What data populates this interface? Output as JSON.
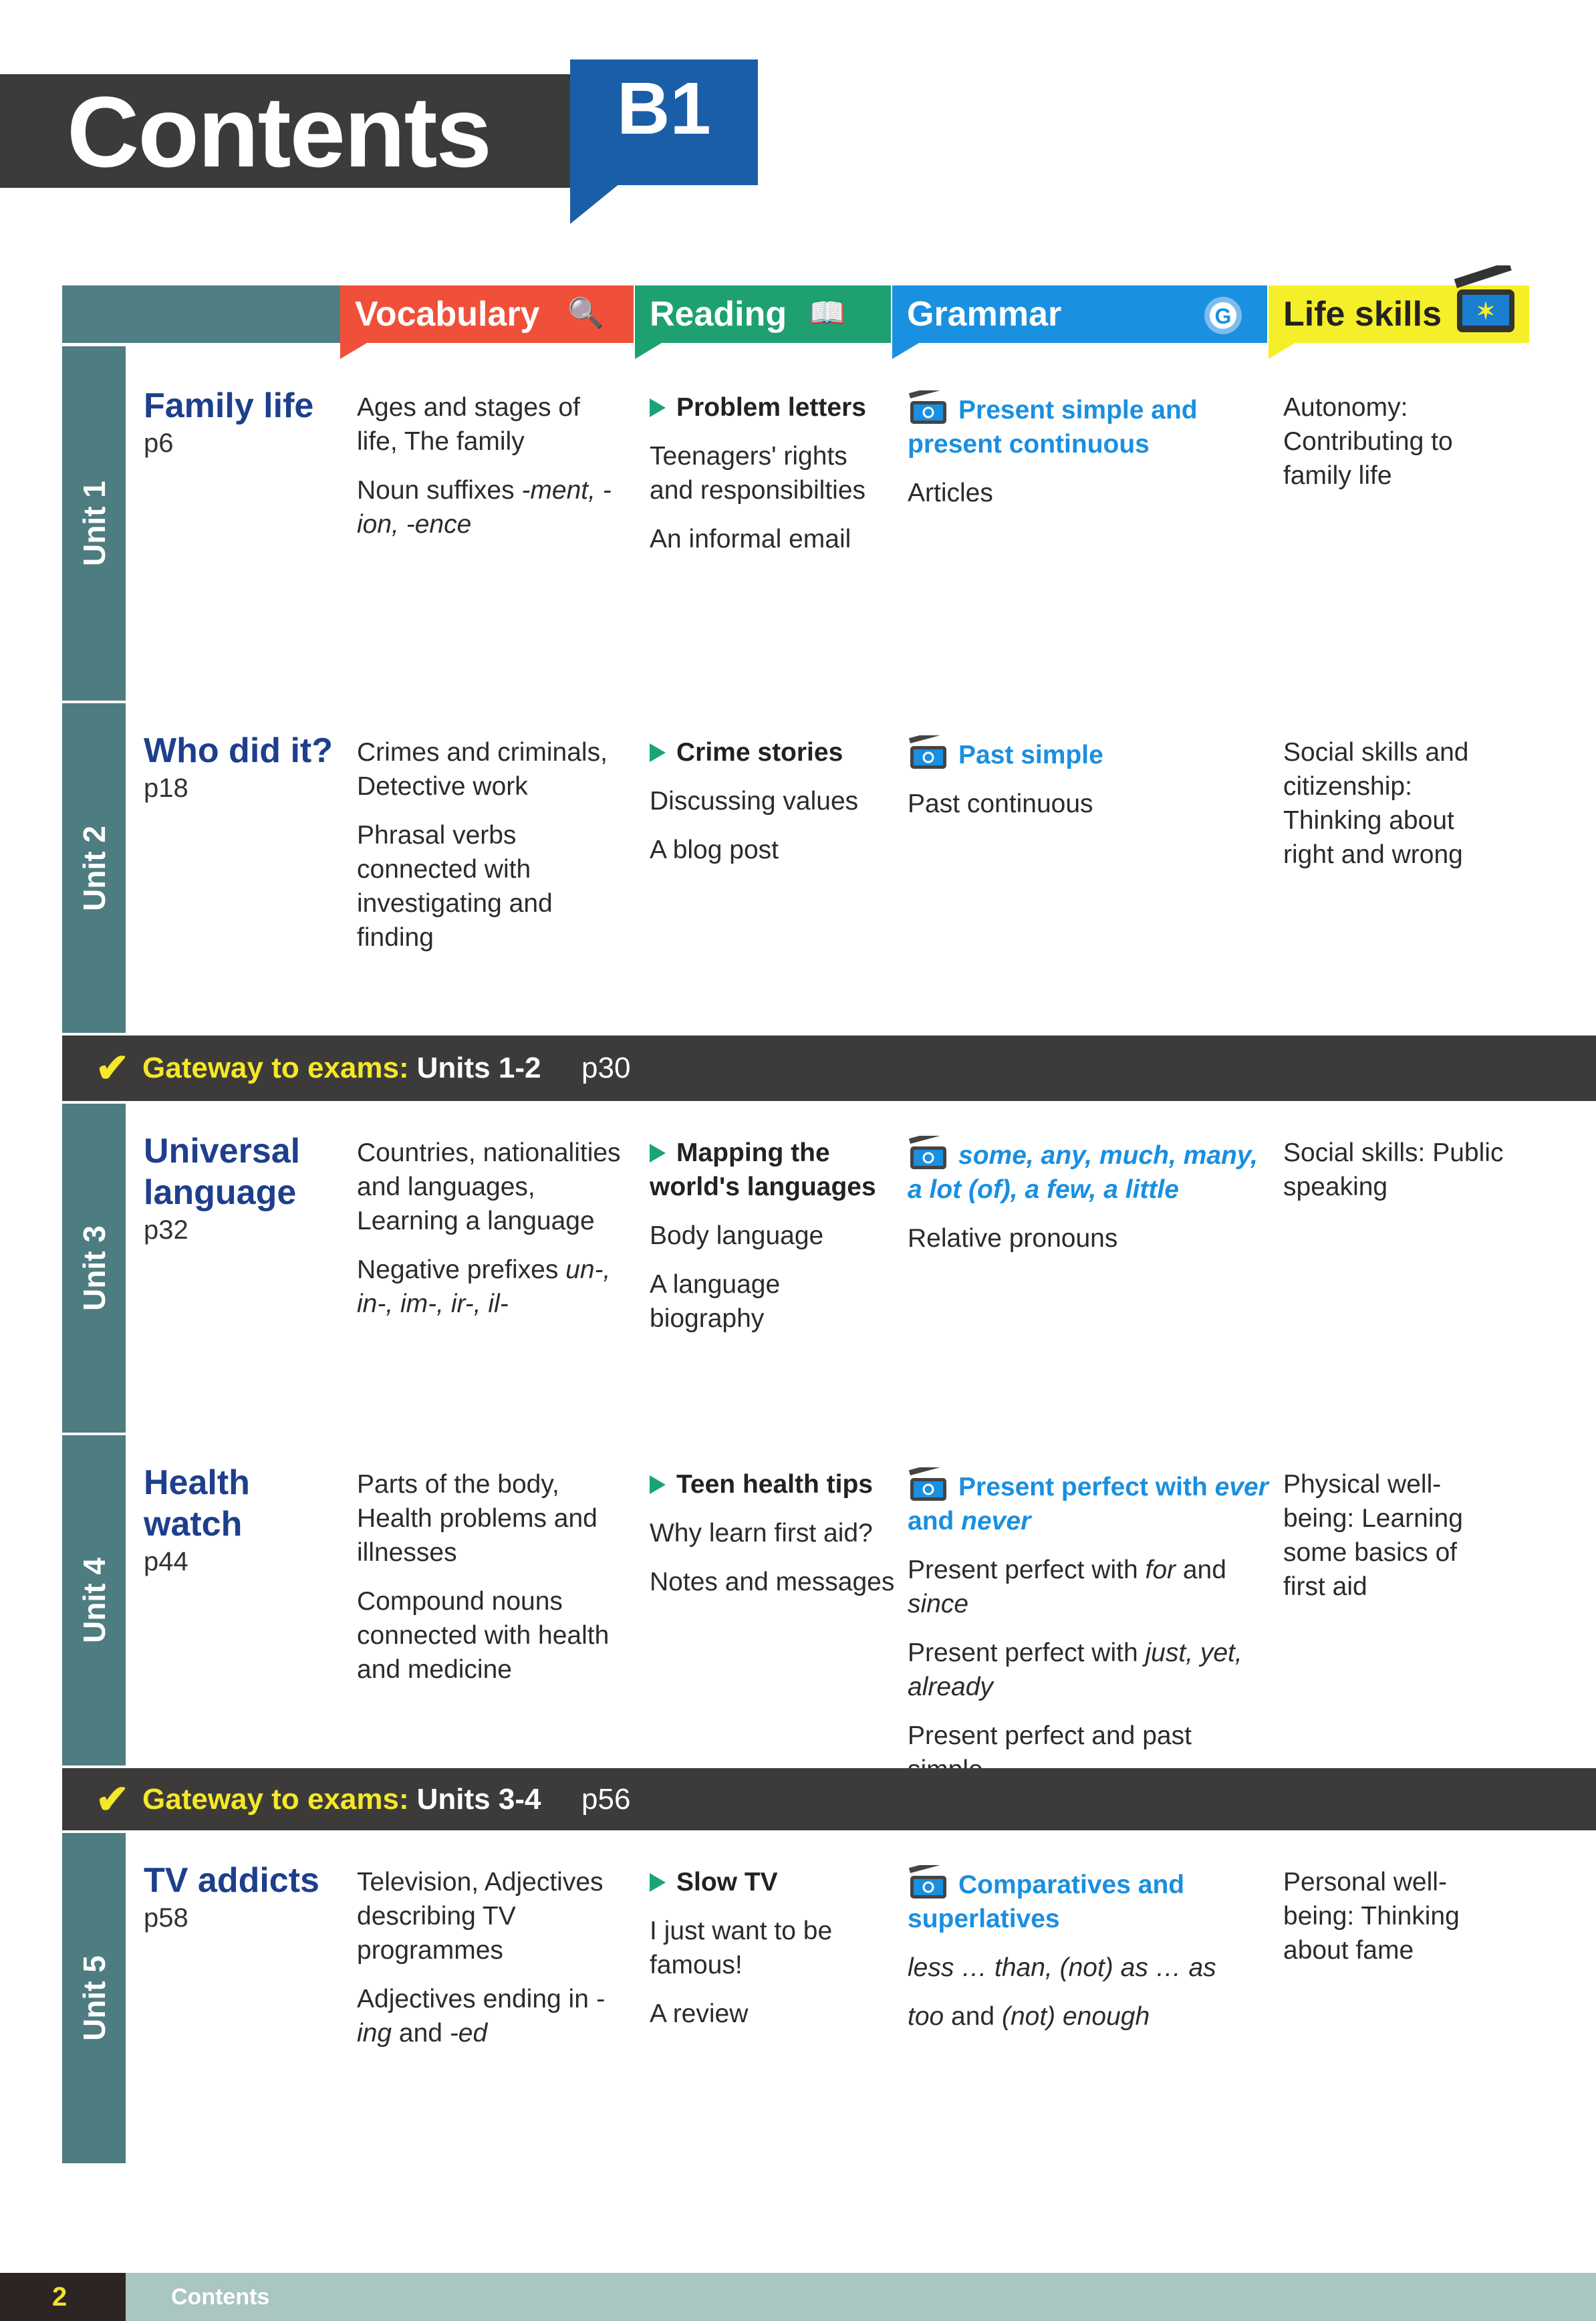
{
  "header": {
    "title": "Contents",
    "level": "B1"
  },
  "columns": {
    "vocabulary": {
      "label": "Vocabulary",
      "color": "#f0503a",
      "icon": "magnifier-icon"
    },
    "reading": {
      "label": "Reading",
      "color": "#1ea070",
      "icon": "book-icon"
    },
    "grammar": {
      "label": "Grammar",
      "color": "#1a90e0",
      "icon": "gear-g-icon"
    },
    "life_skills": {
      "label": "Life skills",
      "color": "#f5ef2a",
      "icon": "clapperboard-icon"
    }
  },
  "rows": [
    {
      "type": "unit",
      "label": "Unit 1",
      "title": "Family life",
      "page": "p6",
      "vocab": [
        [
          {
            "t": "Ages and stages of life, The family"
          }
        ],
        [
          {
            "t": "Noun suffixes "
          },
          {
            "t": "-ment, -ion, -ence",
            "i": true
          }
        ]
      ],
      "reading": [
        {
          "t": "Problem letters",
          "main": true
        },
        {
          "t": "Teenagers' rights and responsibilties"
        },
        {
          "t": "An informal email"
        }
      ],
      "grammar": [
        {
          "hl": true,
          "s": [
            {
              "t": "Present simple and present continuous"
            }
          ]
        },
        {
          "s": [
            {
              "t": "Articles"
            }
          ]
        }
      ],
      "life": "Autonomy: Contributing to family life"
    },
    {
      "type": "unit",
      "label": "Unit 2",
      "title": "Who did it?",
      "page": "p18",
      "vocab": [
        [
          {
            "t": "Crimes and criminals, Detective work"
          }
        ],
        [
          {
            "t": "Phrasal verbs connected with investigating and finding"
          }
        ]
      ],
      "reading": [
        {
          "t": "Crime stories",
          "main": true
        },
        {
          "t": "Discussing values"
        },
        {
          "t": "A blog post"
        }
      ],
      "grammar": [
        {
          "hl": true,
          "s": [
            {
              "t": "Past simple"
            }
          ]
        },
        {
          "s": [
            {
              "t": "Past continuous"
            }
          ]
        }
      ],
      "life": "Social skills and citizenship: Thinking about right and wrong"
    },
    {
      "type": "gateway",
      "label": "Gateway to exams:",
      "units": "Units 1-2",
      "page": "p30"
    },
    {
      "type": "unit",
      "label": "Unit 3",
      "title": "Universal language",
      "page": "p32",
      "vocab": [
        [
          {
            "t": "Countries, nationalities and languages, Learning a language"
          }
        ],
        [
          {
            "t": "Negative prefixes "
          },
          {
            "t": "un-, in-, im-, ir-, il-",
            "i": true
          }
        ]
      ],
      "reading": [
        {
          "t": "Mapping the world's languages",
          "main": true
        },
        {
          "t": "Body language"
        },
        {
          "t": "A language biography"
        }
      ],
      "grammar": [
        {
          "hl": true,
          "s": [
            {
              "t": "some, any, much, many, a lot (of), a few, a little",
              "i": true
            }
          ]
        },
        {
          "s": [
            {
              "t": "Relative pronouns"
            }
          ]
        }
      ],
      "life": "Social skills: Public speaking"
    },
    {
      "type": "unit",
      "label": "Unit 4",
      "title": "Health watch",
      "page": "p44",
      "vocab": [
        [
          {
            "t": "Parts of the body, Health problems and illnesses"
          }
        ],
        [
          {
            "t": "Compound nouns connected with health and medicine"
          }
        ]
      ],
      "reading": [
        {
          "t": "Teen health tips",
          "main": true
        },
        {
          "t": "Why learn first aid?"
        },
        {
          "t": "Notes and messages"
        }
      ],
      "grammar": [
        {
          "hl": true,
          "s": [
            {
              "t": "Present perfect with "
            },
            {
              "t": "ever",
              "i": true
            },
            {
              "t": " and "
            },
            {
              "t": "never",
              "i": true
            }
          ]
        },
        {
          "s": [
            {
              "t": "Present perfect with "
            },
            {
              "t": "for",
              "i": true
            },
            {
              "t": " and "
            },
            {
              "t": "since",
              "i": true
            }
          ]
        },
        {
          "s": [
            {
              "t": "Present perfect with "
            },
            {
              "t": "just, yet, already",
              "i": true
            }
          ]
        },
        {
          "s": [
            {
              "t": "Present perfect and past simple"
            }
          ]
        }
      ],
      "life": "Physical well-being: Learning some basics of first aid"
    },
    {
      "type": "gateway",
      "label": "Gateway to exams:",
      "units": "Units 3-4",
      "page": "p56"
    },
    {
      "type": "unit",
      "label": "Unit 5",
      "title": "TV addicts",
      "page": "p58",
      "vocab": [
        [
          {
            "t": "Television, Adjectives describing TV programmes"
          }
        ],
        [
          {
            "t": "Adjectives ending in "
          },
          {
            "t": "-ing",
            "i": true
          },
          {
            "t": " and "
          },
          {
            "t": "-ed",
            "i": true
          }
        ]
      ],
      "reading": [
        {
          "t": "Slow TV",
          "main": true
        },
        {
          "t": "I just want to be famous!"
        },
        {
          "t": "A review"
        }
      ],
      "grammar": [
        {
          "hl": true,
          "s": [
            {
              "t": "Comparatives and superlatives"
            }
          ]
        },
        {
          "s": [
            {
              "t": "less … than, (not) as … as",
              "i": true
            }
          ]
        },
        {
          "s": [
            {
              "t": "too",
              "i": true
            },
            {
              "t": " and "
            },
            {
              "t": "(not) enough",
              "i": true
            }
          ]
        }
      ],
      "life": "Personal well-being: Thinking about fame"
    }
  ],
  "footer": {
    "page_number": "2",
    "section": "Contents"
  }
}
